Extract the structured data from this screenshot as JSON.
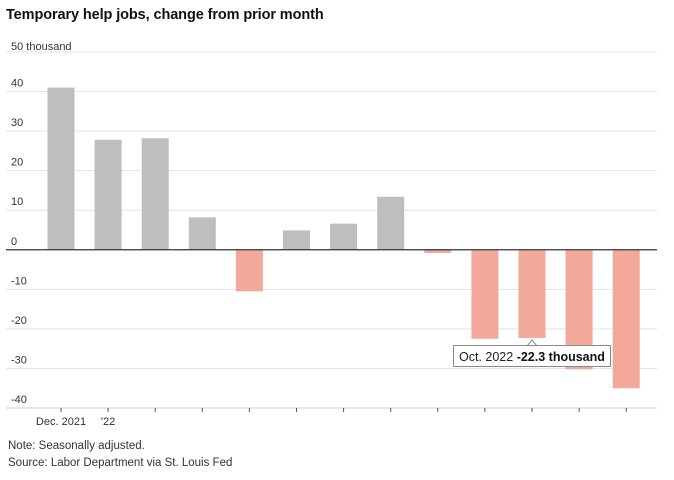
{
  "chart_data": {
    "type": "bar",
    "title": "Temporary help jobs, change from prior month",
    "unit_label": "50 thousand",
    "categories": [
      "Dec. 2021",
      "'22",
      "",
      "",
      "",
      "",
      "",
      "",
      "",
      "",
      "",
      "",
      ""
    ],
    "values": [
      41.0,
      27.8,
      28.2,
      8.2,
      -10.5,
      4.9,
      6.6,
      13.4,
      -0.8,
      -22.5,
      -22.3,
      -30.2,
      -35.0
    ],
    "ylim": [
      -40,
      50
    ],
    "yticks": [
      -40,
      -30,
      -20,
      -10,
      0,
      10,
      20,
      30,
      40
    ],
    "grid": true,
    "colors": {
      "positive": "#bebebe",
      "negative": "#f2a999",
      "grid": "#e4e4e4",
      "zero": "#333333"
    },
    "annotation": {
      "label": "Oct. 2022",
      "value": "-22.3 thousand",
      "index": 10
    }
  },
  "notes": {
    "note": "Note: Seasonally adjusted.",
    "source": "Source: Labor Department via St. Louis Fed"
  }
}
